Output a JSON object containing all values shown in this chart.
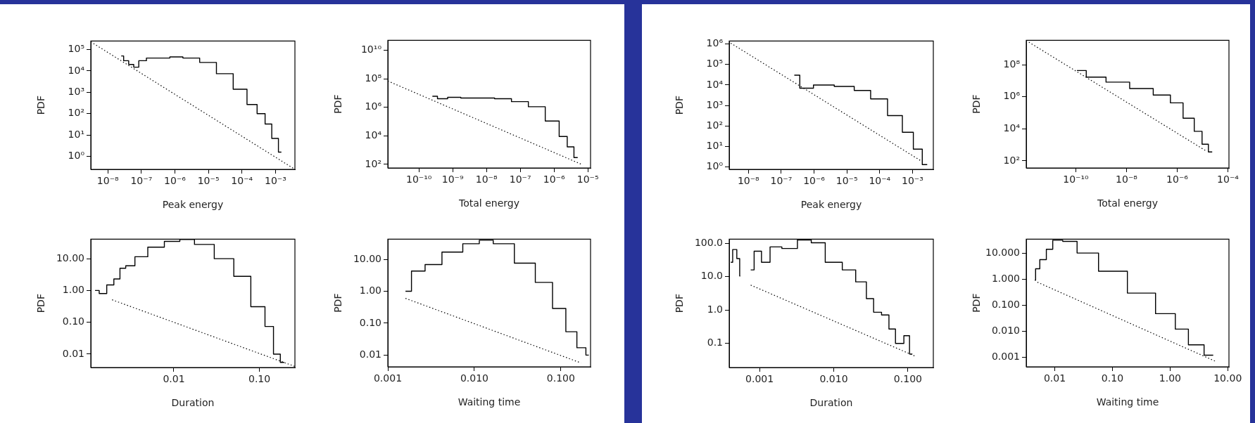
{
  "chart_data": [
    {
      "type": "step",
      "xlabel": "Peak energy",
      "ylabel": "PDF",
      "log": "xy",
      "xlim": [
        3.1e-09,
        0.0038
      ],
      "ylim": [
        0.25,
        250000.0
      ],
      "xticks": [
        {
          "value": 1e-08,
          "label": "10⁻⁸"
        },
        {
          "value": 1e-07,
          "label": "10⁻⁷"
        },
        {
          "value": 1e-06,
          "label": "10⁻⁶"
        },
        {
          "value": 1e-05,
          "label": "10⁻⁵"
        },
        {
          "value": 0.0001,
          "label": "10⁻⁴"
        },
        {
          "value": 0.001,
          "label": "10⁻³"
        }
      ],
      "yticks": [
        {
          "value": 1,
          "label": "10⁰"
        },
        {
          "value": 10,
          "label": "10¹"
        },
        {
          "value": 100,
          "label": "10²"
        },
        {
          "value": 1000,
          "label": "10³"
        },
        {
          "value": 10000,
          "label": "10⁴"
        },
        {
          "value": 100000,
          "label": "10⁵"
        }
      ],
      "series": [
        {
          "type": "step",
          "color": "#000000",
          "x": [
            2.5e-08,
            3.5e-08,
            5e-08,
            7e-08,
            1e-07,
            2e-07,
            5e-07,
            1e-06,
            3e-06,
            1e-05,
            3e-05,
            0.0001,
            0.0002,
            0.0004,
            0.0006,
            0.001,
            0.0015
          ],
          "values": [
            50000.0,
            30000.0,
            20000.0,
            15000.0,
            30000.0,
            40000.0,
            40000.0,
            45000.0,
            40000.0,
            25000.0,
            7400.0,
            1400.0,
            270,
            100,
            33,
            7,
            1.6
          ]
        },
        {
          "type": "line",
          "line_style": "dotted",
          "color": "#000000",
          "x": [
            3.1e-09,
            0.0038
          ],
          "values": [
            230000.0,
            0.25
          ]
        }
      ]
    },
    {
      "type": "step",
      "xlabel": "Total energy",
      "ylabel": "PDF",
      "log": "xy",
      "xlim": [
        1.2e-11,
        1.2e-05
      ],
      "ylim": [
        56,
        50000000000.0
      ],
      "xticks": [
        {
          "value": 1e-10,
          "label": "10⁻¹⁰"
        },
        {
          "value": 1e-09,
          "label": "10⁻⁹"
        },
        {
          "value": 1e-08,
          "label": "10⁻⁸"
        },
        {
          "value": 1e-07,
          "label": "10⁻⁷"
        },
        {
          "value": 1e-06,
          "label": "10⁻⁶"
        },
        {
          "value": 1e-05,
          "label": "10⁻⁵"
        }
      ],
      "yticks": [
        {
          "value": 100,
          "label": "10²"
        },
        {
          "value": 10000,
          "label": "10⁴"
        },
        {
          "value": 1000000,
          "label": "10⁶"
        },
        {
          "value": 100000000,
          "label": "10⁸"
        },
        {
          "value": 10000000000,
          "label": "10¹⁰"
        }
      ],
      "series": [
        {
          "type": "step",
          "color": "#000000",
          "x": [
            2.5e-10,
            5e-10,
            1e-09,
            3e-09,
            1e-08,
            3e-08,
            1e-07,
            3e-07,
            1e-06,
            2e-06,
            3e-06,
            5e-06
          ],
          "values": [
            6000000.0,
            4000000.0,
            5000000.0,
            4500000.0,
            4500000.0,
            4000000.0,
            2500000.0,
            1100000.0,
            110000.0,
            9000.0,
            1700.0,
            300
          ]
        },
        {
          "type": "line",
          "line_style": "dotted",
          "color": "#000000",
          "x": [
            1.2e-11,
            6.5e-06
          ],
          "values": [
            70000000.0,
            100
          ]
        }
      ]
    },
    {
      "type": "step",
      "xlabel": "Duration",
      "ylabel": "PDF",
      "log": "xy",
      "xlim": [
        0.00107,
        0.26
      ],
      "ylim": [
        0.0038,
        41
      ],
      "xticks": [
        0.01,
        {
          "value": 0.1,
          "label": "0.10"
        }
      ],
      "yticks": [
        0.01,
        {
          "value": 0.1,
          "label": "0.10"
        },
        {
          "value": 1,
          "label": "1.00"
        },
        {
          "value": 10,
          "label": "10.00"
        }
      ],
      "series": [
        {
          "type": "step",
          "color": "#000000",
          "x": [
            0.0012,
            0.0015,
            0.0018,
            0.0022,
            0.0025,
            0.003,
            0.0041,
            0.006,
            0.01,
            0.0138,
            0.022,
            0.04,
            0.063,
            0.1,
            0.135,
            0.158,
            0.195
          ],
          "values": [
            1.0,
            0.8,
            1.5,
            2.3,
            5,
            6,
            11.5,
            23,
            35,
            40,
            28,
            10,
            2.8,
            0.31,
            0.074,
            0.01,
            0.0055
          ]
        },
        {
          "type": "line",
          "line_style": "dotted",
          "color": "#000000",
          "x": [
            0.0019,
            0.26
          ],
          "values": [
            0.51,
            0.0041
          ]
        }
      ]
    },
    {
      "type": "step",
      "xlabel": "Waiting time",
      "ylabel": "PDF",
      "log": "xy",
      "xlim": [
        0.001,
        0.22
      ],
      "ylim": [
        0.0043,
        43
      ],
      "xticks": [
        0.001,
        {
          "value": 0.01,
          "label": "0.010"
        },
        {
          "value": 0.1,
          "label": "0.100"
        }
      ],
      "yticks": [
        0.01,
        {
          "value": 0.1,
          "label": "0.10"
        },
        {
          "value": 1,
          "label": "1.00"
        },
        {
          "value": 10,
          "label": "10.00"
        }
      ],
      "series": [
        {
          "type": "step",
          "color": "#000000",
          "x": [
            0.0016,
            0.0022,
            0.0033,
            0.0054,
            0.01,
            0.013,
            0.021,
            0.04,
            0.064,
            0.1,
            0.13,
            0.18,
            0.21
          ],
          "values": [
            1.0,
            4.3,
            6.9,
            17,
            31,
            40,
            31,
            7.6,
            1.9,
            0.29,
            0.054,
            0.017,
            0.01
          ]
        },
        {
          "type": "line",
          "line_style": "dotted",
          "color": "#000000",
          "x": [
            0.0016,
            0.17
          ],
          "values": [
            0.6,
            0.0057
          ]
        }
      ]
    },
    {
      "type": "step",
      "xlabel": "Peak energy",
      "ylabel": "PDF",
      "log": "xy",
      "xlim": [
        2.6e-09,
        0.0043
      ],
      "ylim": [
        0.76,
        1400000.0
      ],
      "xticks": [
        {
          "value": 1e-08,
          "label": "10⁻⁸"
        },
        {
          "value": 1e-07,
          "label": "10⁻⁷"
        },
        {
          "value": 1e-06,
          "label": "10⁻⁶"
        },
        {
          "value": 1e-05,
          "label": "10⁻⁵"
        },
        {
          "value": 0.0001,
          "label": "10⁻⁴"
        },
        {
          "value": 0.001,
          "label": "10⁻³"
        }
      ],
      "yticks": [
        {
          "value": 1,
          "label": "10⁰"
        },
        {
          "value": 10,
          "label": "10¹"
        },
        {
          "value": 100,
          "label": "10²"
        },
        {
          "value": 1000,
          "label": "10³"
        },
        {
          "value": 10000,
          "label": "10⁴"
        },
        {
          "value": 100000,
          "label": "10⁵"
        },
        {
          "value": 1000000,
          "label": "10⁶"
        }
      ],
      "series": [
        {
          "type": "step",
          "color": "#000000",
          "x": [
            2.5e-07,
            5.4e-07,
            1.7e-06,
            1e-05,
            2.8e-05,
            0.0001,
            0.0003,
            0.0008,
            0.0014,
            0.0028
          ],
          "values": [
            30000.0,
            7000.0,
            10000.0,
            8500.0,
            5400.0,
            2100.0,
            320,
            49,
            7.4,
            1.3
          ]
        },
        {
          "type": "line",
          "line_style": "dotted",
          "color": "#000000",
          "x": [
            2.9e-09,
            0.0017
          ],
          "values": [
            1100000.0,
            2.1
          ]
        }
      ]
    },
    {
      "type": "step",
      "xlabel": "Total energy",
      "ylabel": "PDF",
      "log": "xy",
      "xlim": [
        1.1e-12,
        0.00011
      ],
      "ylim": [
        36,
        3400000000.0
      ],
      "xticks": [
        {
          "value": 1e-10,
          "label": "10⁻¹⁰"
        },
        {
          "value": 1e-08,
          "label": "10⁻⁸"
        },
        {
          "value": 1e-06,
          "label": "10⁻⁶"
        },
        {
          "value": 0.0001,
          "label": "10⁻⁴"
        }
      ],
      "yticks": [
        {
          "value": 100,
          "label": "10²"
        },
        {
          "value": 10000,
          "label": "10⁴"
        },
        {
          "value": 1000000,
          "label": "10⁶"
        },
        {
          "value": 100000000,
          "label": "10⁸"
        }
      ],
      "series": [
        {
          "type": "step",
          "color": "#000000",
          "x": [
            1.1e-10,
            6e-10,
            4e-09,
            4.4e-08,
            2.9e-07,
            1e-06,
            2.9e-06,
            7.6e-06,
            1.2e-05,
            2.4e-05
          ],
          "values": [
            44000000.0,
            17000000.0,
            8300000.0,
            3300000.0,
            1300000.0,
            420000.0,
            46000.0,
            7000.0,
            1100.0,
            360
          ]
        },
        {
          "type": "line",
          "line_style": "dotted",
          "color": "#000000",
          "x": [
            1.4e-12,
            1.3e-05
          ],
          "values": [
            2600000000.0,
            440
          ]
        }
      ]
    },
    {
      "type": "step",
      "xlabel": "Duration",
      "ylabel": "PDF",
      "log": "xy",
      "xlim": [
        0.00039,
        0.22
      ],
      "ylim": [
        0.019,
        133
      ],
      "xticks": [
        0.001,
        {
          "value": 0.01,
          "label": "0.010"
        },
        {
          "value": 0.1,
          "label": "0.100"
        }
      ],
      "yticks": [
        0.1,
        {
          "value": 1,
          "label": "1.0"
        },
        {
          "value": 10,
          "label": "10.0"
        },
        {
          "value": 100,
          "label": "100.0"
        }
      ],
      "series": [
        {
          "type": "step",
          "color": "#000000",
          "x": [
            0.00041,
            0.00046,
            0.00053,
            0.00055,
            0.00065,
            0.00076,
            0.00094,
            0.0012,
            0.0016,
            0.0025,
            0.0042,
            0.0059,
            0.01,
            0.017,
            0.023,
            0.033,
            0.036,
            0.054,
            0.057,
            0.081,
            0.096,
            0.115
          ],
          "values": [
            27,
            65,
            35,
            10.5,
            null,
            16,
            58,
            27,
            78,
            70,
            126,
            104,
            27,
            16,
            7,
            2.2,
            0.86,
            0.71,
            0.27,
            0.1,
            0.17,
            0.048
          ]
        },
        {
          "type": "line",
          "line_style": "dotted",
          "color": "#000000",
          "x": [
            0.00076,
            0.13
          ],
          "values": [
            5.6,
            0.04
          ]
        }
      ]
    },
    {
      "type": "step",
      "xlabel": "Waiting time",
      "ylabel": "PDF",
      "log": "xy",
      "xlim": [
        0.0032,
        10.5
      ],
      "ylim": [
        0.00043,
        34
      ],
      "xticks": [
        0.01,
        {
          "value": 0.1,
          "label": "0.10"
        },
        {
          "value": 1,
          "label": "1.00"
        },
        {
          "value": 10,
          "label": "10.00"
        }
      ],
      "yticks": [
        0.001,
        {
          "value": 0.01,
          "label": "0.010"
        },
        {
          "value": 0.1,
          "label": "0.100"
        },
        {
          "value": 1,
          "label": "1.000"
        },
        {
          "value": 10,
          "label": "10.000"
        }
      ],
      "series": [
        {
          "type": "step",
          "color": "#000000",
          "x": [
            0.0045,
            0.0048,
            0.0063,
            0.0081,
            0.0105,
            0.018,
            0.033,
            0.1,
            0.33,
            0.95,
            1.6,
            2.7,
            5.6
          ],
          "values": [
            0.91,
            2.5,
            5.6,
            14,
            31,
            28,
            10,
            2.0,
            0.29,
            0.047,
            0.012,
            0.003,
            0.0012
          ]
        },
        {
          "type": "line",
          "line_style": "dotted",
          "color": "#000000",
          "x": [
            0.005,
            6.3
          ],
          "values": [
            0.76,
            0.00068
          ]
        }
      ]
    }
  ]
}
